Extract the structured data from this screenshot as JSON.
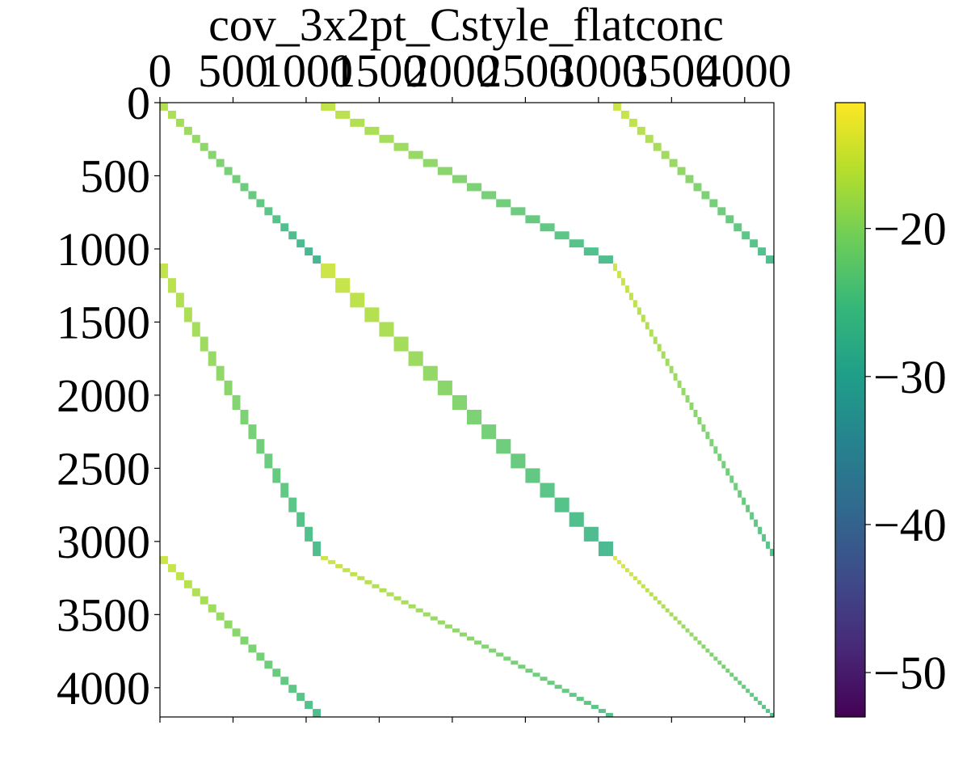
{
  "chart_data": {
    "type": "heatmap",
    "title": "cov_3x2pt_Cstyle_flatconc",
    "matrix_size": 4200,
    "x_ticks": [
      0,
      500,
      1000,
      1500,
      2000,
      2500,
      3000,
      3500,
      4000
    ],
    "y_ticks": [
      0,
      500,
      1000,
      1500,
      2000,
      2500,
      3000,
      3500,
      4000
    ],
    "colorbar": {
      "colormap": "viridis",
      "range": [
        -53,
        -11.5
      ],
      "ticks": [
        -20,
        -30,
        -40,
        -50
      ],
      "tick_labels": [
        "−20",
        "−30",
        "−40",
        "−50"
      ]
    },
    "segments": [
      {
        "name": "diag-a",
        "rows": [
          0,
          1100
        ],
        "cols": [
          0,
          1100
        ],
        "blocks": 20,
        "values": [
          -17,
          -28
        ]
      },
      {
        "name": "diag-b",
        "rows": [
          1100,
          3100
        ],
        "cols": [
          1100,
          3100
        ],
        "blocks": 20,
        "values": [
          -15,
          -27
        ]
      },
      {
        "name": "diag-c",
        "rows": [
          3100,
          4200
        ],
        "cols": [
          3100,
          4200
        ],
        "blocks": 40,
        "values": [
          -14,
          -25
        ]
      },
      {
        "name": "offdiag-1",
        "rows": [
          0,
          1100
        ],
        "cols": [
          1100,
          3100
        ],
        "blocks": 20,
        "values": [
          -16,
          -26
        ]
      },
      {
        "name": "offdiag-2",
        "rows": [
          1100,
          3100
        ],
        "cols": [
          0,
          1100
        ],
        "blocks": 20,
        "values": [
          -16,
          -26
        ]
      },
      {
        "name": "offdiag-3",
        "rows": [
          0,
          1100
        ],
        "cols": [
          3100,
          4200
        ],
        "blocks": 20,
        "values": [
          -15,
          -26
        ]
      },
      {
        "name": "offdiag-4",
        "rows": [
          3100,
          4200
        ],
        "cols": [
          0,
          1100
        ],
        "blocks": 20,
        "values": [
          -15,
          -26
        ]
      },
      {
        "name": "offdiag-5",
        "rows": [
          1100,
          3100
        ],
        "cols": [
          3100,
          4200
        ],
        "blocks": 40,
        "values": [
          -15,
          -25
        ]
      },
      {
        "name": "offdiag-6",
        "rows": [
          3100,
          4200
        ],
        "cols": [
          1100,
          3100
        ],
        "blocks": 40,
        "values": [
          -15,
          -25
        ]
      }
    ]
  }
}
